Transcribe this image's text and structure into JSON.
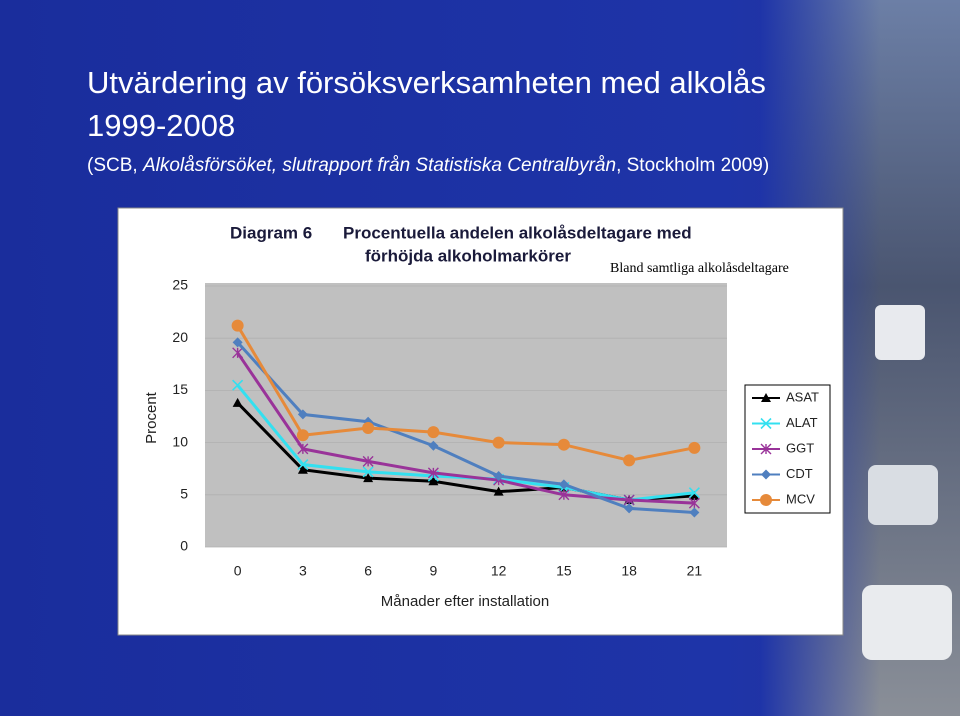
{
  "slide": {
    "title": "Utvärdering av försöksverksamheten med alkolås",
    "years": "1999-2008",
    "source": [
      "(SCB, ",
      "Alkolåsförsöket, slutrapport från Statistiska Centralbyrån",
      ", Stockholm 2009)"
    ]
  },
  "chart_data": {
    "type": "line",
    "label": "Diagram 6",
    "title": [
      "Procentuella andelen alkolåsdeltagare med",
      "förhöjda alkoholmarkörer"
    ],
    "annotation": "Bland samtliga alkolåsdeltagare",
    "x_label": "Månader efter installation",
    "y_label": "Procent",
    "categories": [
      "0",
      "3",
      "6",
      "9",
      "12",
      "15",
      "18",
      "21"
    ],
    "ylim": [
      0,
      25
    ],
    "yticks": [
      0,
      5,
      10,
      15,
      20,
      25
    ],
    "grid": true,
    "legend": "right",
    "series": [
      {
        "name": "ASAT",
        "color": "#000000",
        "marker": "triangle",
        "values": [
          13.8,
          7.4,
          6.6,
          6.3,
          5.3,
          5.7,
          4.5,
          4.9
        ]
      },
      {
        "name": "ALAT",
        "color": "#33e0f0",
        "marker": "x",
        "values": [
          15.5,
          7.9,
          7.2,
          6.8,
          6.5,
          5.7,
          4.5,
          5.2
        ]
      },
      {
        "name": "GGT",
        "color": "#993399",
        "marker": "star",
        "values": [
          18.6,
          9.4,
          8.2,
          7.1,
          6.4,
          5.0,
          4.5,
          4.2
        ]
      },
      {
        "name": "CDT",
        "color": "#4f7fbf",
        "marker": "diamond",
        "values": [
          19.6,
          12.7,
          12.0,
          9.7,
          6.8,
          6.0,
          3.7,
          3.3
        ]
      },
      {
        "name": "MCV",
        "color": "#e68a3a",
        "marker": "circle",
        "values": [
          21.2,
          10.7,
          11.4,
          11.0,
          10.0,
          9.8,
          8.3,
          9.5
        ]
      }
    ]
  }
}
